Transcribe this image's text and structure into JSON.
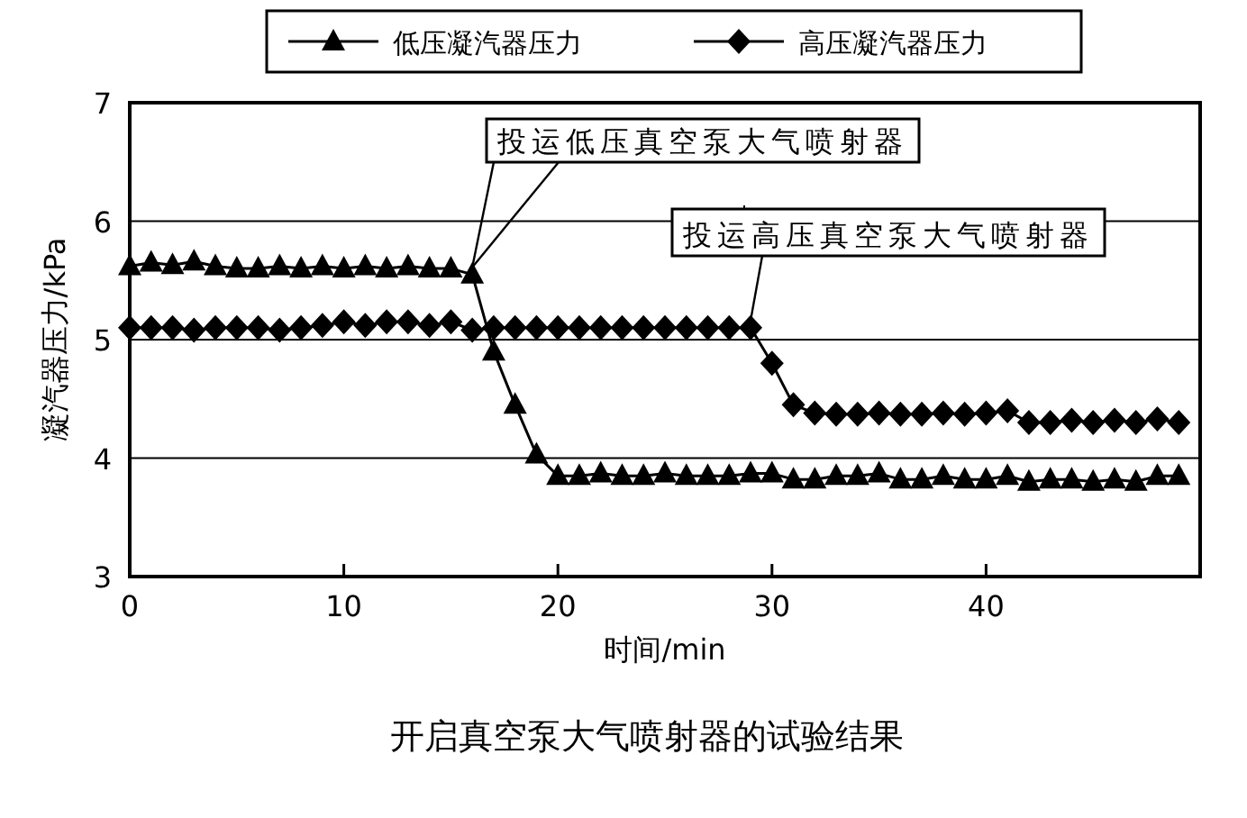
{
  "chart_data": {
    "type": "line",
    "xlabel": "时间/min",
    "ylabel": "凝汽器压力/kPa",
    "title": "开启真空泵大气喷射器的试验结果",
    "x": [
      0,
      1,
      2,
      3,
      4,
      5,
      6,
      7,
      8,
      9,
      10,
      11,
      12,
      13,
      14,
      15,
      16,
      17,
      18,
      19,
      20,
      21,
      22,
      23,
      24,
      25,
      26,
      27,
      28,
      29,
      30,
      31,
      32,
      33,
      34,
      35,
      36,
      37,
      38,
      39,
      40,
      41,
      42,
      43,
      44,
      45,
      46,
      47,
      48,
      49
    ],
    "series": [
      {
        "name": "低压凝汽器压力",
        "color": "#000000",
        "marker": "triangle",
        "values": [
          5.62,
          5.65,
          5.63,
          5.66,
          5.62,
          5.6,
          5.6,
          5.62,
          5.6,
          5.62,
          5.6,
          5.62,
          5.6,
          5.62,
          5.6,
          5.6,
          5.55,
          4.9,
          4.45,
          4.03,
          3.85,
          3.85,
          3.87,
          3.85,
          3.85,
          3.87,
          3.85,
          3.85,
          3.85,
          3.87,
          3.87,
          3.82,
          3.82,
          3.85,
          3.85,
          3.87,
          3.82,
          3.82,
          3.85,
          3.82,
          3.82,
          3.85,
          3.8,
          3.82,
          3.82,
          3.8,
          3.82,
          3.8,
          3.85,
          3.85
        ]
      },
      {
        "name": "高压凝汽器压力",
        "color": "#000000",
        "marker": "diamond",
        "values": [
          5.1,
          5.1,
          5.1,
          5.08,
          5.1,
          5.1,
          5.1,
          5.08,
          5.1,
          5.12,
          5.15,
          5.12,
          5.15,
          5.15,
          5.12,
          5.15,
          5.08,
          5.1,
          5.1,
          5.1,
          5.1,
          5.1,
          5.1,
          5.1,
          5.1,
          5.1,
          5.1,
          5.1,
          5.1,
          5.1,
          4.8,
          4.45,
          4.38,
          4.37,
          4.37,
          4.38,
          4.37,
          4.37,
          4.38,
          4.37,
          4.38,
          4.4,
          4.3,
          4.3,
          4.32,
          4.3,
          4.32,
          4.3,
          4.33,
          4.3
        ]
      }
    ],
    "xlim": [
      0,
      50
    ],
    "xticks": [
      0,
      10,
      20,
      30,
      40
    ],
    "ylim": [
      3,
      7
    ],
    "yticks": [
      3,
      4,
      5,
      6,
      7
    ],
    "grid": "y",
    "legend": "top",
    "line_style": "solid",
    "annotations": [
      {
        "text": "投运低压真空泵大气喷射器",
        "x": 16,
        "y": 5.55
      },
      {
        "text": "投运高压真空泵大气喷射器",
        "x": 29,
        "y": 5.1
      }
    ]
  }
}
